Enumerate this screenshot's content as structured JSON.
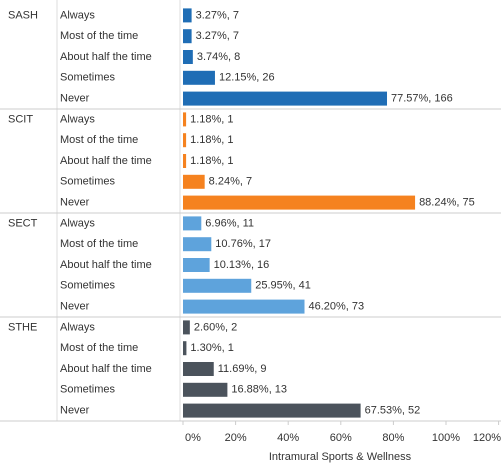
{
  "chart_data": {
    "type": "bar",
    "orientation": "horizontal",
    "categories": [
      "Always",
      "Most of the time",
      "About half the time",
      "Sometimes",
      "Never"
    ],
    "series": [
      {
        "name": "SASH",
        "color": "#1f6db5",
        "values": [
          3.27,
          3.27,
          3.74,
          12.15,
          77.57
        ],
        "value_labels": [
          "3.27%, 7",
          "3.27%, 7",
          "3.74%, 8",
          "12.15%, 26",
          "77.57%, 166"
        ]
      },
      {
        "name": "SCIT",
        "color": "#f5821f",
        "values": [
          1.18,
          1.18,
          1.18,
          8.24,
          88.24
        ],
        "value_labels": [
          "1.18%, 1",
          "1.18%, 1",
          "1.18%, 1",
          "8.24%, 7",
          "88.24%, 75"
        ]
      },
      {
        "name": "SECT",
        "color": "#5ea3dc",
        "values": [
          6.96,
          10.76,
          10.13,
          25.95,
          46.2
        ],
        "value_labels": [
          "6.96%, 11",
          "10.76%, 17",
          "10.13%, 16",
          "25.95%, 41",
          "46.20%, 73"
        ]
      },
      {
        "name": "STHE",
        "color": "#4b535c",
        "values": [
          2.6,
          1.3,
          11.69,
          16.88,
          67.53
        ],
        "value_labels": [
          "2.60%, 2",
          "1.30%, 1",
          "11.69%, 9",
          "16.88%, 13",
          "67.53%, 52"
        ]
      }
    ],
    "xlabel": "Intramural Sports & Wellness",
    "xlim": [
      0,
      120
    ],
    "xticks": [
      {
        "value": 0,
        "label": "0%"
      },
      {
        "value": 20,
        "label": "20%"
      },
      {
        "value": 40,
        "label": "40%"
      },
      {
        "value": 60,
        "label": "60%"
      },
      {
        "value": 80,
        "label": "80%"
      },
      {
        "value": 100,
        "label": "100%"
      },
      {
        "value": 120,
        "label": "120%"
      }
    ]
  }
}
